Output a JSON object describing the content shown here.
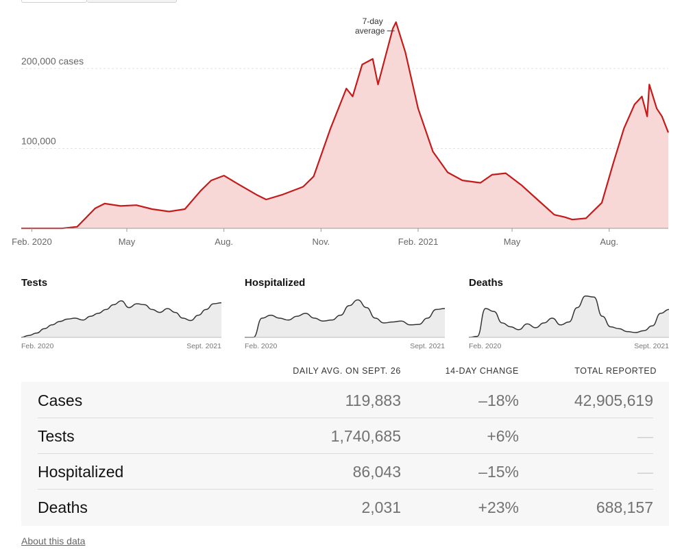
{
  "chart_data": [
    {
      "type": "area",
      "series": [
        {
          "name": "7-day average",
          "x": [
            "2020-01-22",
            "2020-03-01",
            "2020-03-15",
            "2020-04-01",
            "2020-04-10",
            "2020-04-25",
            "2020-05-10",
            "2020-05-25",
            "2020-06-10",
            "2020-06-25",
            "2020-07-10",
            "2020-07-20",
            "2020-08-01",
            "2020-08-15",
            "2020-09-01",
            "2020-09-10",
            "2020-09-25",
            "2020-10-15",
            "2020-10-25",
            "2020-11-10",
            "2020-11-25",
            "2020-12-01",
            "2020-12-10",
            "2020-12-20",
            "2020-12-25",
            "2021-01-01",
            "2021-01-08",
            "2021-01-11",
            "2021-01-20",
            "2021-02-01",
            "2021-02-15",
            "2021-03-01",
            "2021-03-15",
            "2021-04-01",
            "2021-04-12",
            "2021-04-25",
            "2021-05-10",
            "2021-05-25",
            "2021-06-10",
            "2021-06-20",
            "2021-06-27",
            "2021-07-10",
            "2021-07-25",
            "2021-08-05",
            "2021-08-15",
            "2021-08-25",
            "2021-09-01",
            "2021-09-06",
            "2021-09-08",
            "2021-09-15",
            "2021-09-20",
            "2021-09-26"
          ],
          "y": [
            0,
            0,
            2000,
            25000,
            31000,
            28000,
            29000,
            24000,
            21000,
            24000,
            47000,
            60000,
            66000,
            55000,
            42000,
            36000,
            42000,
            52000,
            65000,
            125000,
            175000,
            165000,
            205000,
            212000,
            180000,
            215000,
            250000,
            258000,
            220000,
            150000,
            96000,
            70000,
            60000,
            57000,
            67000,
            69000,
            54000,
            36000,
            17000,
            14000,
            11000,
            12500,
            32000,
            82000,
            125000,
            155000,
            165000,
            140000,
            180000,
            150000,
            140000,
            119883
          ]
        }
      ],
      "x_ticks": [
        "Feb. 2020",
        "May",
        "Aug.",
        "Nov.",
        "Feb. 2021",
        "May",
        "Aug."
      ],
      "y_ticks": [
        {
          "value": 100000,
          "label": "100,000"
        },
        {
          "value": 200000,
          "label": "200,000 cases"
        }
      ],
      "ylim": [
        0,
        260000
      ],
      "annotation": {
        "line1": "7-day",
        "line2": "average"
      },
      "grid": true,
      "colors": {
        "line": "#c41a1a",
        "fill": "#f7d8d7"
      }
    },
    {
      "type": "area",
      "title": "Tests",
      "xlabels": [
        "Feb. 2020",
        "Sept. 2021"
      ],
      "ylim": [
        0,
        100
      ],
      "values": [
        0,
        4,
        9,
        18,
        26,
        33,
        38,
        40,
        36,
        44,
        50,
        58,
        68,
        76,
        62,
        70,
        68,
        58,
        52,
        60,
        52,
        40,
        35,
        46,
        58,
        70,
        72
      ],
      "colors": {
        "line": "#333333",
        "fill": "#ececec"
      }
    },
    {
      "type": "area",
      "title": "Hospitalized",
      "xlabels": [
        "Feb. 2020",
        "Sept. 2021"
      ],
      "ylim": [
        0,
        100
      ],
      "values": [
        0,
        0,
        40,
        46,
        40,
        36,
        44,
        50,
        40,
        34,
        36,
        46,
        66,
        78,
        62,
        40,
        30,
        32,
        34,
        26,
        27,
        40,
        58,
        60
      ],
      "colors": {
        "line": "#333333",
        "fill": "#ececec"
      }
    },
    {
      "type": "area",
      "title": "Deaths",
      "xlabels": [
        "Feb. 2020",
        "Sept. 2021"
      ],
      "ylim": [
        0,
        100
      ],
      "values": [
        0,
        2,
        60,
        54,
        30,
        22,
        16,
        28,
        20,
        30,
        40,
        26,
        32,
        62,
        86,
        84,
        44,
        22,
        18,
        12,
        10,
        14,
        24,
        50,
        58
      ],
      "colors": {
        "line": "#333333",
        "fill": "#ececec"
      }
    }
  ],
  "table": {
    "headers": [
      "DAILY AVG. ON SEPT. 26",
      "14-DAY CHANGE",
      "TOTAL REPORTED"
    ],
    "rows": [
      {
        "name": "Cases",
        "avg": "119,883",
        "change": "–18%",
        "total": "42,905,619"
      },
      {
        "name": "Tests",
        "avg": "1,740,685",
        "change": "+6%",
        "total": "—"
      },
      {
        "name": "Hospitalized",
        "avg": "86,043",
        "change": "–15%",
        "total": "—"
      },
      {
        "name": "Deaths",
        "avg": "2,031",
        "change": "+23%",
        "total": "688,157"
      }
    ]
  },
  "footer": {
    "about_label": "About this data"
  }
}
